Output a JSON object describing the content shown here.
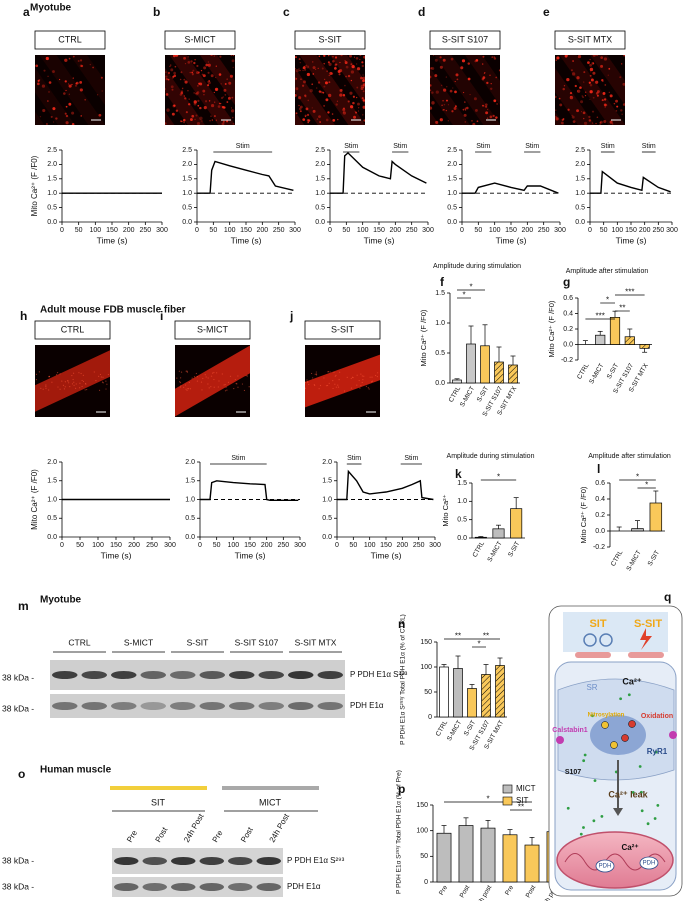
{
  "figure": {
    "sections": [
      "Myotube",
      "Adult mouse FDB muscle fiber",
      "Myotube",
      "Human muscle"
    ],
    "images": [
      {
        "letter": "a",
        "label": "CTRL"
      },
      {
        "letter": "b",
        "label": "S-MICT"
      },
      {
        "letter": "c",
        "label": "S-SIT"
      },
      {
        "letter": "d",
        "label": "S-SIT S107"
      },
      {
        "letter": "e",
        "label": "S-SIT MTX"
      },
      {
        "letter": "h",
        "label": "CTRL"
      },
      {
        "letter": "i",
        "label": "S-MICT"
      },
      {
        "letter": "j",
        "label": "S-SIT"
      }
    ],
    "blots": [
      {
        "letter": "m",
        "groups": [
          "CTRL",
          "S-MICT",
          "S-SIT",
          "S-SIT S107",
          "S-SIT MTX"
        ],
        "rows": [
          "P PDH E1α S²⁹³",
          "PDH E1α"
        ],
        "markers": [
          "38 kDa -",
          "38 kDa -"
        ]
      },
      {
        "letter": "o",
        "groups": [
          "SIT",
          "MICT"
        ],
        "lanes": [
          "Pre",
          "Post",
          "24h Post",
          "Pre",
          "Post",
          "24h Post"
        ],
        "rows": [
          "P PDH E1α S²⁹³",
          "PDH E1α"
        ],
        "markers": [
          "38 kDa -",
          "38 kDa -"
        ]
      }
    ],
    "diagram": {
      "letter": "q",
      "texts": [
        "SIT",
        "S-SIT",
        "SR",
        "Ca²⁺",
        "Calstabin1",
        "Nitrosylation",
        "Oxidation",
        "S107",
        "RyR1",
        "Ca²⁺ leak",
        "Ca²⁺",
        "PDH",
        "PDH"
      ]
    }
  },
  "chart_data": [
    {
      "type": "line",
      "ylabel": "Mito Ca²⁺ (F /F0)",
      "xlabel": "Time (s)",
      "xlim": [
        0,
        300
      ],
      "xticks": [
        0,
        50,
        100,
        150,
        200,
        250,
        300
      ],
      "ylim": [
        0,
        2.5
      ],
      "yticks": [
        {
          "value": 0,
          "label": "0.0"
        },
        0.5,
        {
          "value": 1,
          "label": "1.0"
        },
        1.5,
        {
          "value": 2,
          "label": "2.0"
        },
        2.5
      ],
      "baseline": 1,
      "x": [
        0,
        50,
        100,
        150,
        200,
        250,
        300
      ],
      "values": [
        1,
        1,
        1,
        1,
        1,
        1,
        1
      ],
      "stim": []
    },
    {
      "type": "line",
      "xlabel": "Time (s)",
      "xlim": [
        0,
        300
      ],
      "xticks": [
        0,
        50,
        100,
        150,
        200,
        250,
        300
      ],
      "ylim": [
        0,
        2.5
      ],
      "yticks": [
        {
          "value": 0,
          "label": "0.0"
        },
        0.5,
        {
          "value": 1,
          "label": "1.0"
        },
        1.5,
        {
          "value": 2,
          "label": "2.0"
        },
        2.5
      ],
      "baseline": 1,
      "x": [
        0,
        40,
        45,
        55,
        100,
        150,
        200,
        220,
        240,
        295
      ],
      "values": [
        1,
        1,
        1.8,
        2.1,
        1.95,
        1.8,
        1.65,
        1.6,
        1.25,
        1.1
      ],
      "stim": [
        {
          "label": "Stim",
          "start": 50,
          "end": 230
        }
      ]
    },
    {
      "type": "line",
      "xlabel": "Time (s)",
      "xlim": [
        0,
        300
      ],
      "xticks": [
        0,
        50,
        100,
        150,
        200,
        250,
        300
      ],
      "ylim": [
        0,
        2.5
      ],
      "yticks": [
        {
          "value": 0,
          "label": "0.0"
        },
        0.5,
        {
          "value": 1,
          "label": "1.0"
        },
        1.5,
        {
          "value": 2,
          "label": "2.0"
        },
        2.5
      ],
      "baseline": 1,
      "x": [
        0,
        40,
        45,
        55,
        100,
        150,
        185,
        190,
        200,
        250,
        295
      ],
      "values": [
        1,
        1,
        2.3,
        2.4,
        1.9,
        1.6,
        1.5,
        2.1,
        2,
        1.6,
        1.35
      ],
      "stim": [
        {
          "label": "Stim",
          "start": 40,
          "end": 90
        },
        {
          "label": "Stim",
          "start": 190,
          "end": 240
        }
      ]
    },
    {
      "type": "line",
      "xlabel": "Time (s)",
      "xlim": [
        0,
        300
      ],
      "xticks": [
        0,
        50,
        100,
        150,
        200,
        250,
        300
      ],
      "ylim": [
        0,
        2.5
      ],
      "yticks": [
        {
          "value": 0,
          "label": "0.0"
        },
        0.5,
        {
          "value": 1,
          "label": "1.0"
        },
        1.5,
        {
          "value": 2,
          "label": "2.0"
        },
        2.5
      ],
      "baseline": 1,
      "x": [
        0,
        40,
        50,
        100,
        150,
        190,
        200,
        240,
        295
      ],
      "values": [
        1,
        1,
        1.2,
        1.35,
        1.2,
        1.1,
        1.25,
        1.25,
        1
      ],
      "stim": [
        {
          "label": "Stim",
          "start": 40,
          "end": 90
        },
        {
          "label": "Stim",
          "start": 190,
          "end": 240
        }
      ]
    },
    {
      "type": "line",
      "xlabel": "Time (s)",
      "xlim": [
        0,
        300
      ],
      "xticks": [
        0,
        50,
        100,
        150,
        200,
        250,
        300
      ],
      "ylim": [
        0,
        2.5
      ],
      "yticks": [
        {
          "value": 0,
          "label": "0.0"
        },
        0.5,
        {
          "value": 1,
          "label": "1.0"
        },
        1.5,
        {
          "value": 2,
          "label": "2.0"
        },
        2.5
      ],
      "baseline": 1,
      "x": [
        0,
        40,
        45,
        100,
        150,
        190,
        195,
        250,
        295
      ],
      "values": [
        1,
        1,
        1.75,
        1.35,
        1.2,
        1.1,
        1.55,
        1.2,
        1.05
      ],
      "stim": [
        {
          "label": "Stim",
          "start": 40,
          "end": 90
        },
        {
          "label": "Stim",
          "start": 190,
          "end": 240
        }
      ]
    },
    {
      "type": "line",
      "ylabel": "Mito Ca²⁺ (F /F0)",
      "xlabel": "Time (s)",
      "xlim": [
        0,
        300
      ],
      "xticks": [
        0,
        50,
        100,
        150,
        200,
        250,
        300
      ],
      "ylim": [
        0,
        2
      ],
      "yticks": [
        {
          "value": 0,
          "label": "0.0"
        },
        0.5,
        {
          "value": 1,
          "label": "1.0"
        },
        1.5,
        {
          "value": 2,
          "label": "2.0"
        }
      ],
      "baseline": 1,
      "x": [
        0,
        50,
        100,
        150,
        200,
        250,
        300
      ],
      "values": [
        1,
        1,
        1,
        1,
        1,
        1,
        1
      ],
      "stim": []
    },
    {
      "type": "line",
      "xlabel": "Time (s)",
      "xlim": [
        0,
        300
      ],
      "xticks": [
        0,
        50,
        100,
        150,
        200,
        250,
        300
      ],
      "ylim": [
        0,
        2
      ],
      "yticks": [
        {
          "value": 0,
          "label": "0.0"
        },
        0.5,
        {
          "value": 1,
          "label": "1.0"
        },
        1.5,
        {
          "value": 2,
          "label": "2.0"
        }
      ],
      "baseline": 1,
      "x": [
        0,
        30,
        35,
        50,
        100,
        150,
        195,
        200,
        210,
        295
      ],
      "values": [
        1,
        1,
        1.45,
        1.5,
        1.45,
        1.42,
        1.4,
        1,
        0.98,
        0.98
      ],
      "stim": [
        {
          "label": "Stim",
          "start": 30,
          "end": 200
        }
      ]
    },
    {
      "type": "line",
      "xlabel": "Time (s)",
      "xlim": [
        0,
        300
      ],
      "xticks": [
        0,
        50,
        100,
        150,
        200,
        250,
        300
      ],
      "ylim": [
        0,
        2
      ],
      "yticks": [
        {
          "value": 0,
          "label": "0.0"
        },
        0.5,
        {
          "value": 1,
          "label": "1.0"
        },
        1.5,
        {
          "value": 2,
          "label": "2.0"
        }
      ],
      "baseline": 1,
      "x": [
        0,
        30,
        35,
        60,
        80,
        100,
        150,
        200,
        230,
        255,
        260,
        295
      ],
      "values": [
        1,
        1,
        1.75,
        1.5,
        1.2,
        1.15,
        1.2,
        1.3,
        1.4,
        1.5,
        1.05,
        1
      ],
      "stim": [
        {
          "label": "Stim",
          "start": 30,
          "end": 75
        },
        {
          "label": "Stim",
          "start": 195,
          "end": 260
        }
      ]
    },
    {
      "type": "bar",
      "letter": "f",
      "subtitle": "Amplitude during stimulation",
      "ylabel": "Mito Ca²⁺ (F /F0)",
      "categories": [
        "CTRL",
        "S-MICT",
        "S-SIT",
        "S-SIT S107",
        "S-SIT MTX"
      ],
      "values": [
        0.05,
        0.65,
        0.62,
        0.35,
        0.3
      ],
      "errors": [
        0.02,
        0.3,
        0.35,
        0.25,
        0.15
      ],
      "colors": [
        "#e0e0e0",
        "#c8c8c8",
        "#f9c85a",
        "#f9c85a",
        "#f9c85a"
      ],
      "hatch": [
        false,
        false,
        false,
        true,
        true
      ],
      "ylim": [
        0,
        1.5
      ],
      "yticks": [
        {
          "value": 0,
          "label": "0.0"
        },
        0.5,
        {
          "value": 1,
          "label": "1.0"
        },
        1.5
      ],
      "stars": [
        "*",
        "*"
      ]
    },
    {
      "type": "bar",
      "letter": "g",
      "subtitle": "Amplitude after stimulation",
      "ylabel": "Mito Ca²⁺ (F /F0)",
      "categories": [
        "CTRL",
        "S-MICT",
        "S-SIT",
        "S-SIT S107",
        "S-SIT MTX"
      ],
      "values": [
        0,
        0.12,
        0.35,
        0.1,
        -0.05
      ],
      "errors": [
        0.05,
        0.05,
        0.08,
        0.1,
        0.05
      ],
      "colors": [
        "#9e9e9e",
        "#c8c8c8",
        "#f9c85a",
        "#f9c85a",
        "#f9c85a"
      ],
      "hatch": [
        false,
        false,
        false,
        true,
        true
      ],
      "ylim": [
        -0.2,
        0.6
      ],
      "yticks": [
        -0.2,
        {
          "value": 0,
          "label": "0.0"
        },
        0.2,
        0.4,
        0.6
      ],
      "stars": [
        "***",
        "*",
        "**",
        "***"
      ]
    },
    {
      "type": "bar",
      "letter": "k",
      "subtitle": "Amplitude during stimulation",
      "ylabel": "Mito Ca²⁺",
      "categories": [
        "CTRL",
        "S-MICT",
        "S-SIT"
      ],
      "values": [
        0.02,
        0.25,
        0.8
      ],
      "errors": [
        0.02,
        0.1,
        0.3
      ],
      "colors": [
        "#dddddd",
        "#bdbdbd",
        "#f9c85a"
      ],
      "hatch": [
        false,
        false,
        false
      ],
      "ylim": [
        0,
        1.5
      ],
      "yticks": [
        {
          "value": 0,
          "label": "0.0"
        },
        0.5,
        {
          "value": 1,
          "label": "1.0"
        },
        1.5
      ],
      "stars": [
        "*"
      ]
    },
    {
      "type": "bar",
      "letter": "l",
      "subtitle": "Amplitude after stimulation",
      "ylabel": "Mito Ca²⁺ (F /F0)",
      "categories": [
        "CTRL",
        "S-MICT",
        "S-SIT"
      ],
      "values": [
        0,
        0.03,
        0.35
      ],
      "errors": [
        0.05,
        0.1,
        0.15
      ],
      "colors": [
        "#dddddd",
        "#bdbdbd",
        "#f9c85a"
      ],
      "hatch": [
        false,
        false,
        false
      ],
      "ylim": [
        -0.2,
        0.6
      ],
      "yticks": [
        -0.2,
        {
          "value": 0,
          "label": "0.0"
        },
        0.2,
        0.4,
        0.6
      ],
      "stars": [
        "*",
        "*"
      ]
    },
    {
      "type": "bar",
      "letter": "n",
      "ylabel": "P PDH E1α S²⁹³/ Total PDH E1α (% of CTRL)",
      "categories": [
        "CTRL",
        "S-MICT",
        "S-SIT",
        "S-SIT S107",
        "S-SIT MXT"
      ],
      "values": [
        100,
        97,
        57,
        85,
        103
      ],
      "errors": [
        5,
        25,
        8,
        20,
        15
      ],
      "colors": [
        "#ffffff",
        "#bdbdbd",
        "#f9c85a",
        "#f9c85a",
        "#f9c85a"
      ],
      "hatch": [
        false,
        false,
        false,
        true,
        true
      ],
      "ylim": [
        0,
        150
      ],
      "yticks": [
        0,
        50,
        100,
        150
      ],
      "stars": [
        "**",
        "*",
        "**"
      ]
    },
    {
      "type": "bar",
      "letter": "p",
      "ylabel": "P PDH E1α S²⁹³/ Total PDH E1α (% of Pre)",
      "categories": [
        "Pre",
        "Post",
        "24h post",
        "Pre",
        "Post",
        "24h post"
      ],
      "values": [
        95,
        110,
        105,
        92,
        72,
        98
      ],
      "errors": [
        15,
        15,
        15,
        10,
        15,
        30
      ],
      "colors": [
        "#bdbdbd",
        "#bdbdbd",
        "#bdbdbd",
        "#f9c85a",
        "#f9c85a",
        "#f9c85a"
      ],
      "hatch": [
        false,
        false,
        false,
        false,
        false,
        false
      ],
      "ylim": [
        0,
        150
      ],
      "yticks": [
        0,
        50,
        100,
        150
      ],
      "stars": [
        "*",
        "**"
      ],
      "legend": [
        {
          "name": "MICT",
          "color": "#bdbdbd"
        },
        {
          "name": "SIT",
          "color": "#f9c85a"
        }
      ]
    }
  ]
}
